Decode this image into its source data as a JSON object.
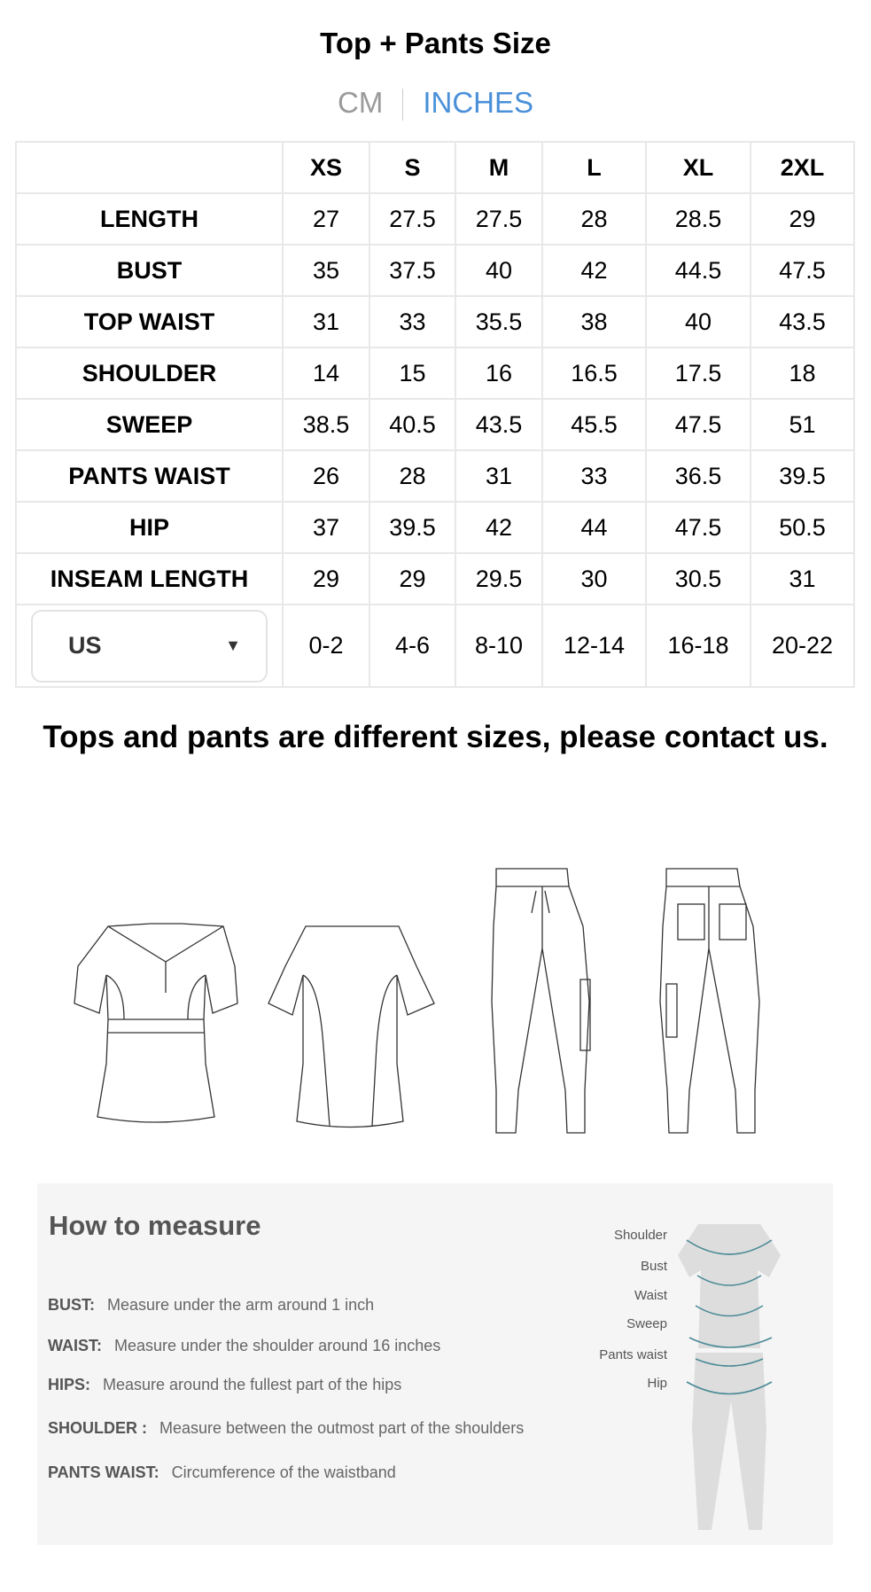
{
  "title": "Top + Pants Size",
  "unit_tabs": {
    "cm": "CM",
    "inches": "INCHES",
    "active": "INCHES",
    "active_color": "#4a90d9"
  },
  "table": {
    "sizes": [
      "XS",
      "S",
      "M",
      "L",
      "XL",
      "2XL"
    ],
    "rows": [
      {
        "label": "LENGTH",
        "values": [
          "27",
          "27.5",
          "27.5",
          "28",
          "28.5",
          "29"
        ]
      },
      {
        "label": "BUST",
        "values": [
          "35",
          "37.5",
          "40",
          "42",
          "44.5",
          "47.5"
        ]
      },
      {
        "label": "TOP WAIST",
        "values": [
          "31",
          "33",
          "35.5",
          "38",
          "40",
          "43.5"
        ]
      },
      {
        "label": "SHOULDER",
        "values": [
          "14",
          "15",
          "16",
          "16.5",
          "17.5",
          "18"
        ]
      },
      {
        "label": "SWEEP",
        "values": [
          "38.5",
          "40.5",
          "43.5",
          "45.5",
          "47.5",
          "51"
        ]
      },
      {
        "label": "PANTS WAIST",
        "values": [
          "26",
          "28",
          "31",
          "33",
          "36.5",
          "39.5"
        ]
      },
      {
        "label": "HIP",
        "values": [
          "37",
          "39.5",
          "42",
          "44",
          "47.5",
          "50.5"
        ]
      },
      {
        "label": "INSEAM LENGTH",
        "values": [
          "29",
          "29",
          "29.5",
          "30",
          "30.5",
          "31"
        ]
      }
    ],
    "region_select": {
      "value": "US",
      "icon": "caret-down-icon",
      "values": [
        "0-2",
        "4-6",
        "8-10",
        "12-14",
        "16-18",
        "20-22"
      ]
    }
  },
  "note": "Tops and pants are different sizes, please contact us.",
  "how_to_measure": {
    "title": "How to measure",
    "items": [
      {
        "label": "BUST:",
        "text": "Measure under the arm around 1 inch"
      },
      {
        "label": "WAIST:",
        "text": "Measure under the shoulder around 16 inches"
      },
      {
        "label": "HIPS:",
        "text": "Measure around the fullest part of the hips"
      },
      {
        "label": "SHOULDER :",
        "text": "Measure between the outmost part of the shoulders"
      },
      {
        "label": "PANTS WAIST:",
        "text": "Circumference of the waistband"
      }
    ],
    "figure_labels": [
      "Shoulder",
      "Bust",
      "Waist",
      "Sweep",
      "Pants waist",
      "Hip"
    ],
    "arrow_color": "#4a8a96"
  }
}
